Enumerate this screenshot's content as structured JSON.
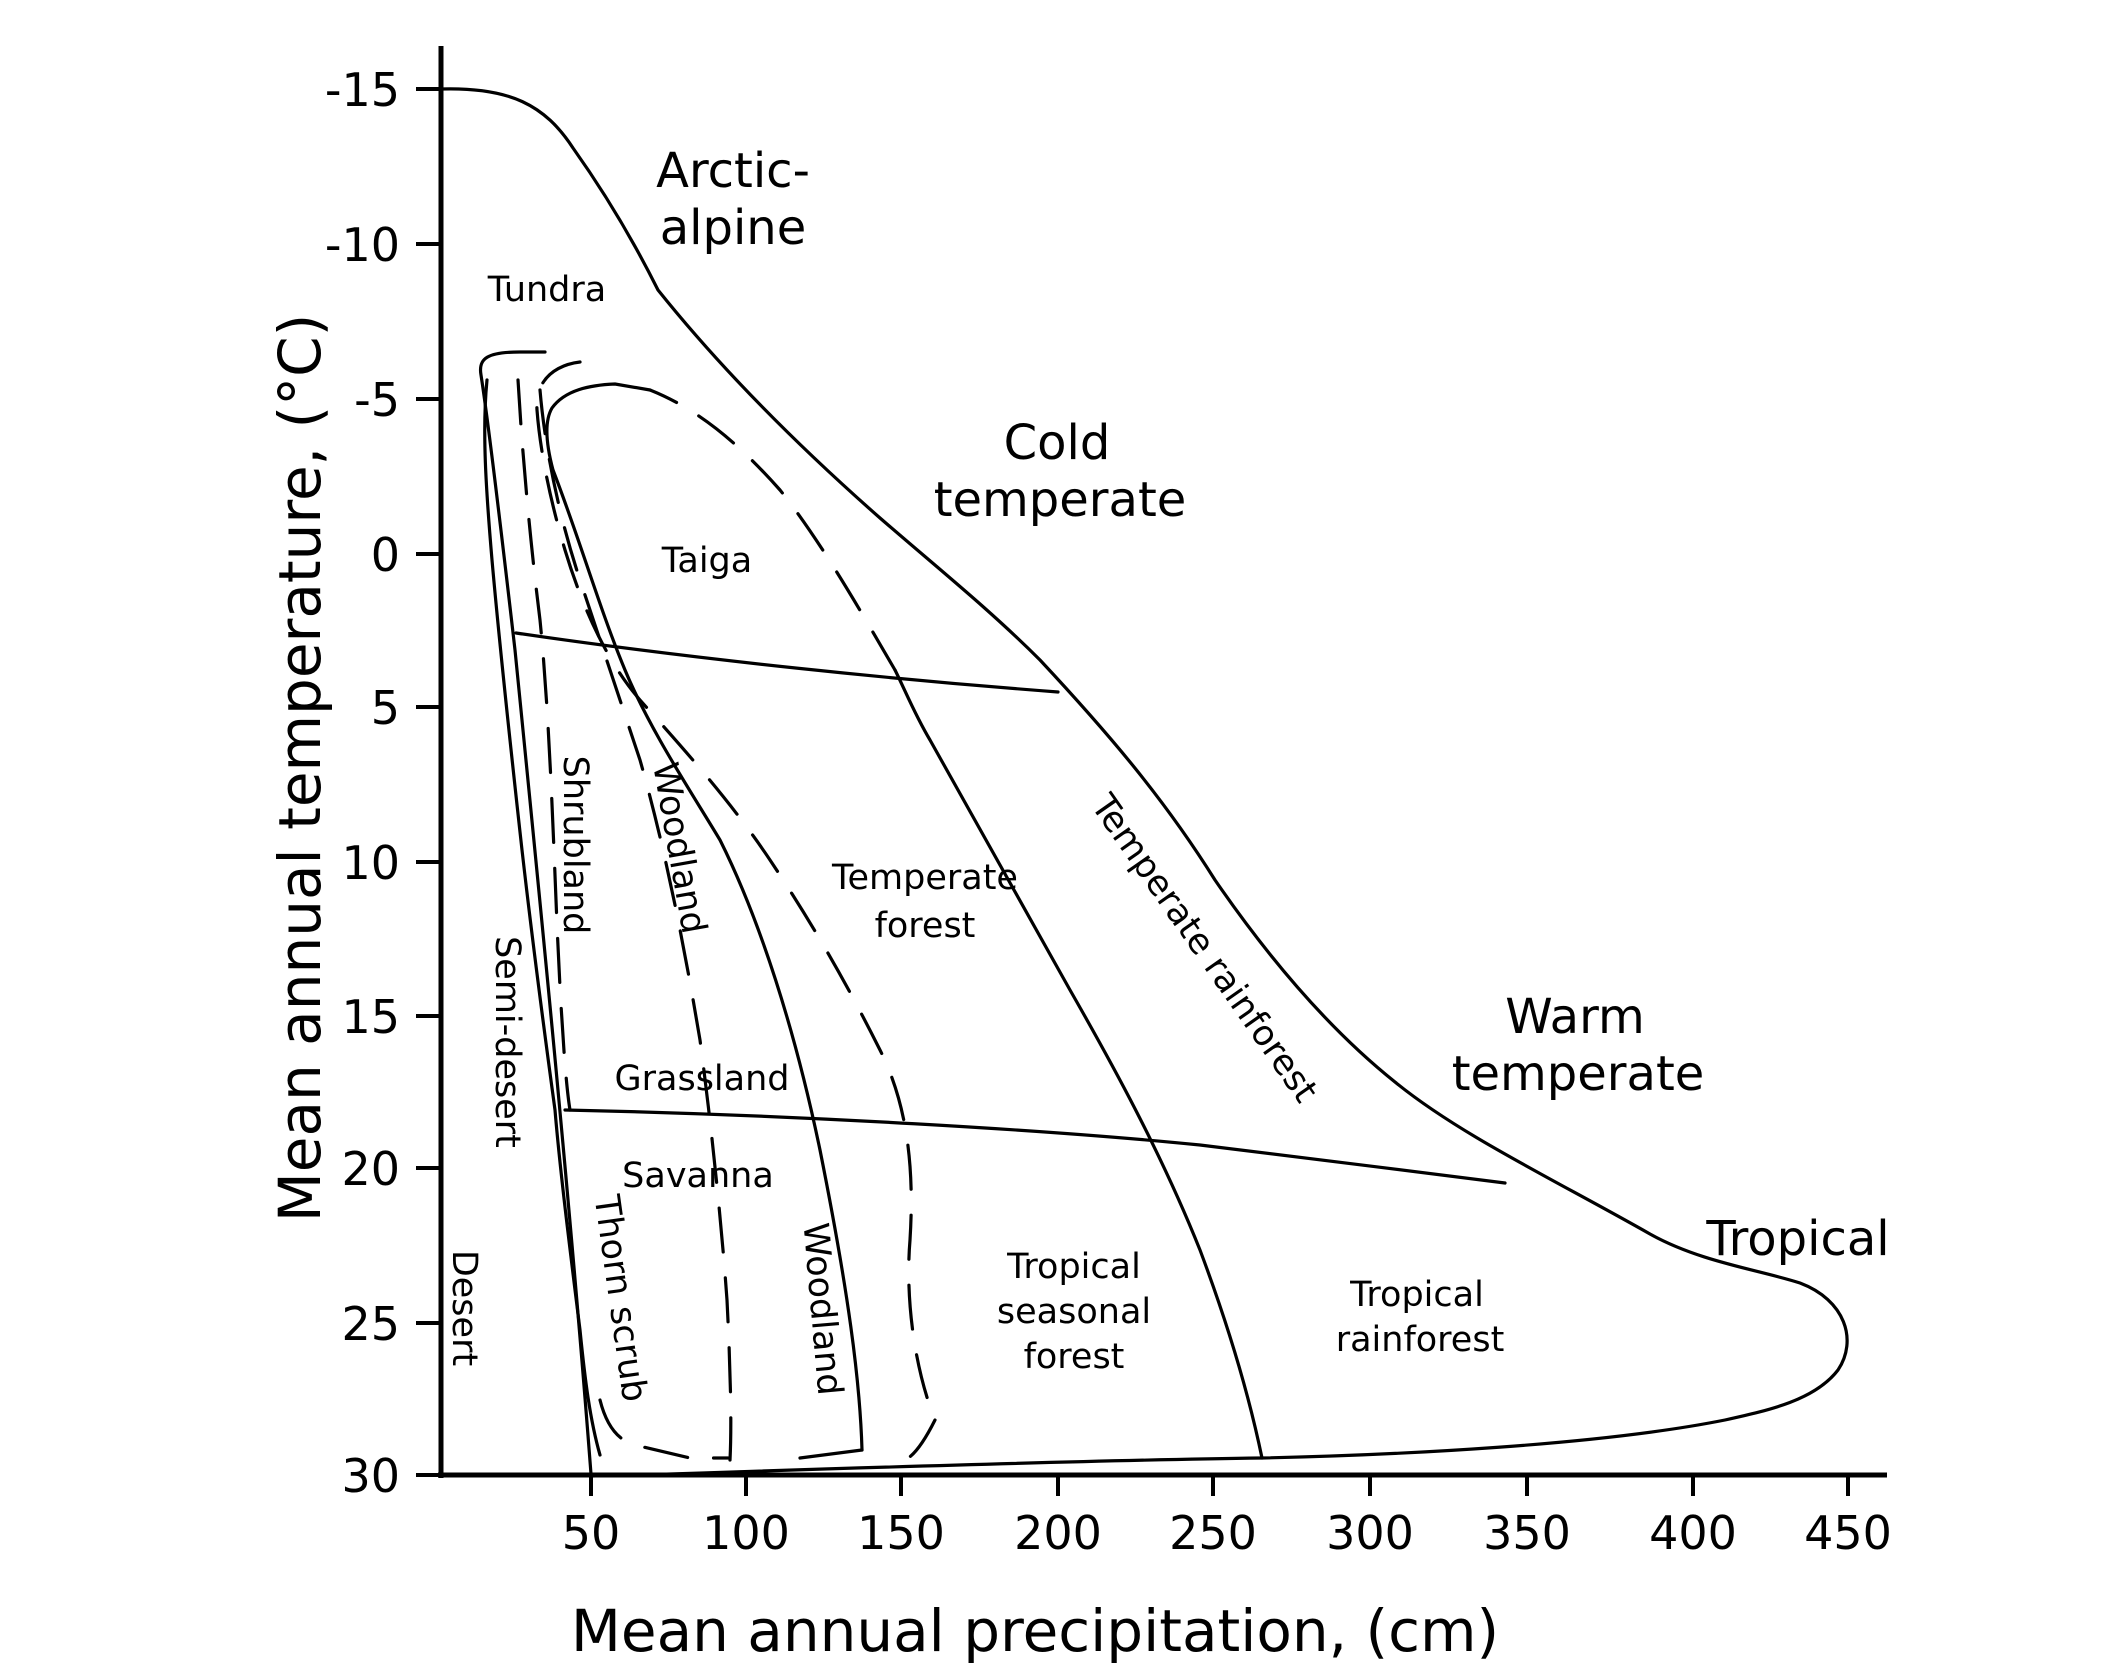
{
  "chart_data": {
    "type": "diagram",
    "xlabel": "Mean annual precipitation, (cm)",
    "ylabel": "Mean annual temperature, (°C)",
    "x_ticks": [
      "50",
      "100",
      "150",
      "200",
      "250",
      "300",
      "350",
      "400",
      "450"
    ],
    "y_ticks": [
      "-15",
      "-10",
      "-5",
      "0",
      "5",
      "10",
      "15",
      "20",
      "25",
      "30"
    ],
    "zones": [
      {
        "lines": [
          "Arctic-",
          "alpine"
        ]
      },
      {
        "lines": [
          "Cold",
          "temperate"
        ]
      },
      {
        "lines": [
          "Warm",
          "temperate"
        ]
      },
      {
        "lines": [
          "Tropical"
        ]
      }
    ],
    "biomes": [
      {
        "lines": [
          "Tundra"
        ]
      },
      {
        "lines": [
          "Taiga"
        ]
      },
      {
        "lines": [
          "Temperate",
          "forest"
        ]
      },
      {
        "lines": [
          "Temperate rainforest"
        ]
      },
      {
        "lines": [
          "Shrubland"
        ]
      },
      {
        "lines": [
          "Woodland"
        ]
      },
      {
        "lines": [
          "Semi-desert"
        ]
      },
      {
        "lines": [
          "Grassland"
        ]
      },
      {
        "lines": [
          "Savanna"
        ]
      },
      {
        "lines": [
          "Thorn scrub"
        ]
      },
      {
        "lines": [
          "Woodland"
        ]
      },
      {
        "lines": [
          "Desert"
        ]
      },
      {
        "lines": [
          "Tropical",
          "seasonal",
          "forest"
        ]
      },
      {
        "lines": [
          "Tropical",
          "rainforest"
        ]
      }
    ]
  }
}
